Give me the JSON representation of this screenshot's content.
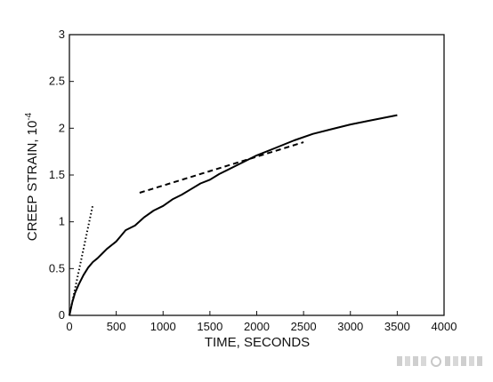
{
  "chart_data": {
    "type": "line",
    "title": "",
    "xlabel": "TIME, SECONDS",
    "ylabel": "CREEP STRAIN, 10",
    "ylabel_exponent": "-4",
    "xlim": [
      0,
      4000
    ],
    "ylim": [
      0,
      3
    ],
    "x_ticks": [
      0,
      500,
      1000,
      1500,
      2000,
      2500,
      3000,
      3500,
      4000
    ],
    "y_ticks": [
      0,
      0.5,
      1,
      1.5,
      2,
      2.5,
      3
    ],
    "x_tick_labels": [
      "0",
      "500",
      "1000",
      "1500",
      "2000",
      "2500",
      "3000",
      "3500",
      "4000"
    ],
    "y_tick_labels": [
      "0",
      "0.5",
      "1",
      "1.5",
      "2",
      "2.5",
      "3"
    ],
    "grid": false,
    "series": [
      {
        "style": "solid",
        "color": "#000000",
        "x": [
          0,
          30,
          60,
          100,
          150,
          200,
          250,
          300,
          350,
          400,
          500,
          550,
          600,
          700,
          800,
          900,
          1000,
          1100,
          1200,
          1300,
          1400,
          1500,
          1600,
          1800,
          2000,
          2200,
          2400,
          2600,
          2800,
          3000,
          3200,
          3500
        ],
        "y": [
          0,
          0.14,
          0.24,
          0.33,
          0.43,
          0.51,
          0.57,
          0.61,
          0.66,
          0.71,
          0.79,
          0.85,
          0.91,
          0.96,
          1.05,
          1.12,
          1.17,
          1.24,
          1.29,
          1.35,
          1.41,
          1.45,
          1.51,
          1.61,
          1.71,
          1.79,
          1.87,
          1.94,
          1.99,
          2.04,
          2.08,
          2.14
        ]
      },
      {
        "style": "dotted",
        "color": "#000000",
        "x": [
          0,
          250
        ],
        "y": [
          0,
          1.18
        ]
      },
      {
        "style": "dashed",
        "color": "#000000",
        "x": [
          750,
          2500
        ],
        "y": [
          1.31,
          1.85
        ]
      }
    ]
  }
}
